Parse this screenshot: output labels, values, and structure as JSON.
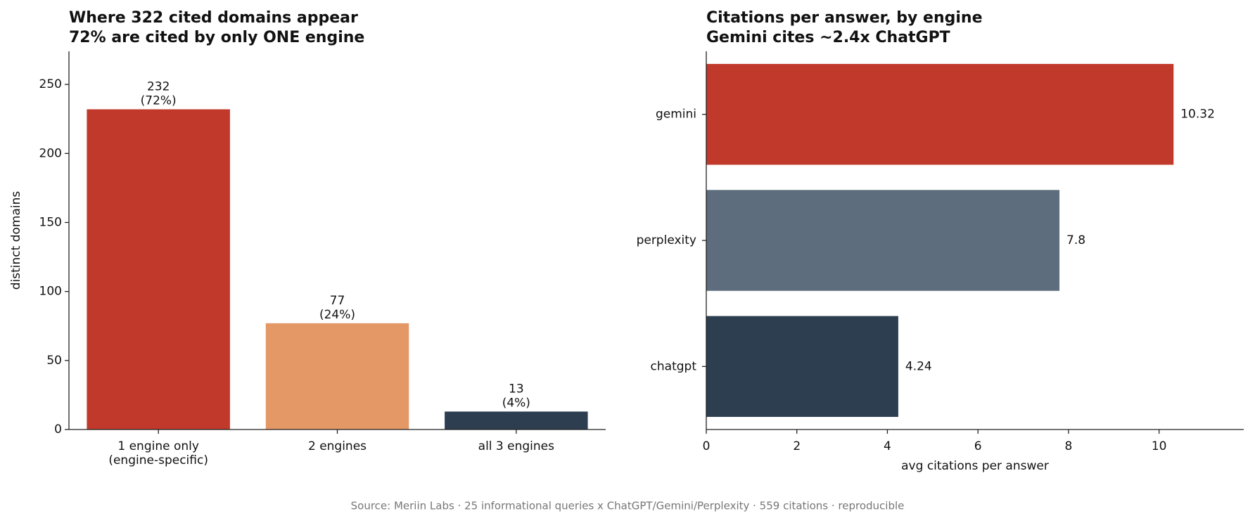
{
  "chart_data": [
    {
      "type": "bar",
      "title": "Where 322 cited domains appear\n72% are cited by only ONE engine",
      "y_label": "distinct domains",
      "categories": [
        "1 engine only\n(engine-specific)",
        "2 engines",
        "all 3 engines"
      ],
      "values": [
        232,
        77,
        13
      ],
      "value_labels": [
        "232\n(72%)",
        "77\n(24%)",
        "13\n(4%)"
      ],
      "colors": [
        "#c0392b",
        "#e39866",
        "#2c3e50"
      ],
      "ylim": [
        0,
        274
      ],
      "yticks": [
        0,
        50,
        100,
        150,
        200,
        250
      ]
    },
    {
      "type": "barh",
      "title": "Citations per answer, by engine\nGemini cites ~2.4x ChatGPT",
      "x_label": "avg citations per answer",
      "categories": [
        "gemini",
        "perplexity",
        "chatgpt"
      ],
      "values": [
        10.32,
        7.8,
        4.24
      ],
      "colors": [
        "#c0392b",
        "#5d6d7e",
        "#2c3e50"
      ],
      "xlim": [
        0,
        11.87
      ],
      "xticks": [
        0,
        2,
        4,
        6,
        8,
        10
      ]
    }
  ],
  "source": "Source: Meriin Labs · 25 informational queries x ChatGPT/Gemini/Perplexity · 559 citations · reproducible"
}
